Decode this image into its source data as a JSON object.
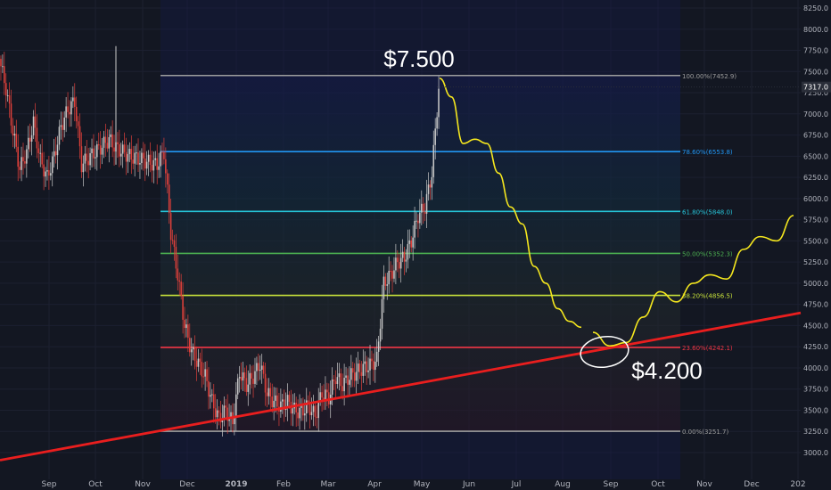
{
  "chart_data": {
    "type": "candlestick",
    "y_axis": {
      "min": 2900,
      "max": 8300,
      "ticks": [
        3000,
        3250,
        3500,
        3750,
        4000,
        4250,
        4500,
        4750,
        5000,
        5250,
        5500,
        5750,
        6000,
        6250,
        6500,
        6750,
        7000,
        7250,
        7500,
        7750,
        8000,
        8250
      ]
    },
    "x_axis": {
      "labels": [
        "Sep",
        "Oct",
        "Nov",
        "Dec",
        "2019",
        "Feb",
        "Mar",
        "Apr",
        "May",
        "Jun",
        "Jul",
        "Aug",
        "Sep",
        "Oct",
        "Nov",
        "Dec",
        "202"
      ]
    },
    "current_price": {
      "label": "7317.0",
      "value": 7317.0
    },
    "fib_levels": [
      {
        "label": "100.00%(7452.9)",
        "value": 7452.9,
        "color": "#9e9e9e"
      },
      {
        "label": "78.60%(6553.8)",
        "value": 6553.8,
        "color": "#2196f3"
      },
      {
        "label": "61.80%(5848.0)",
        "value": 5848.0,
        "color": "#26c6da"
      },
      {
        "label": "50.00%(5352.3)",
        "value": 5352.3,
        "color": "#4caf50"
      },
      {
        "label": "38.20%(4856.5)",
        "value": 4856.5,
        "color": "#c6e03a"
      },
      {
        "label": "23.60%(4242.1)",
        "value": 4242.1,
        "color": "#f23645"
      },
      {
        "label": "0.00%(3251.7)",
        "value": 3251.7,
        "color": "#9e9e9e"
      }
    ],
    "price_series": [
      7650,
      7300,
      6800,
      6350,
      6550,
      6900,
      6450,
      6250,
      6500,
      6850,
      7050,
      7150,
      6400,
      6480,
      6550,
      6620,
      6700,
      6600,
      6550,
      6500,
      6480,
      6450,
      6420,
      6400,
      6550,
      5600,
      5100,
      4500,
      4200,
      4050,
      3900,
      3600,
      3400,
      3500,
      3350,
      3950,
      3800,
      3900,
      4050,
      3700,
      3600,
      3550,
      3600,
      3500,
      3480,
      3560,
      3430,
      3700,
      3650,
      3900,
      3800,
      3900,
      3950,
      4000,
      4030,
      4100,
      5000,
      5100,
      5250,
      5300,
      5500,
      5800,
      5900,
      6300,
      7300
    ],
    "trendline": {
      "color": "#e91e1e",
      "from_date": "2018-08-08",
      "from_value": 2910,
      "to_date": "2020-01-08",
      "to_value": 4650
    },
    "projection": {
      "color": "#f5e71e",
      "points": [
        7420,
        7200,
        6650,
        6700,
        6650,
        6300,
        5900,
        5700,
        5200,
        5000,
        4700,
        4550,
        4480
      ]
    },
    "projection_2": {
      "color": "#f5e71e",
      "points": [
        4420,
        4260,
        4300,
        4600,
        4900,
        4780,
        5000,
        5100,
        5050,
        5400,
        5550,
        5500,
        5800
      ]
    },
    "annotations": [
      {
        "text": "$7.500",
        "anchor_value": 7500
      },
      {
        "text": "$4.200",
        "anchor_value": 4200
      }
    ]
  }
}
